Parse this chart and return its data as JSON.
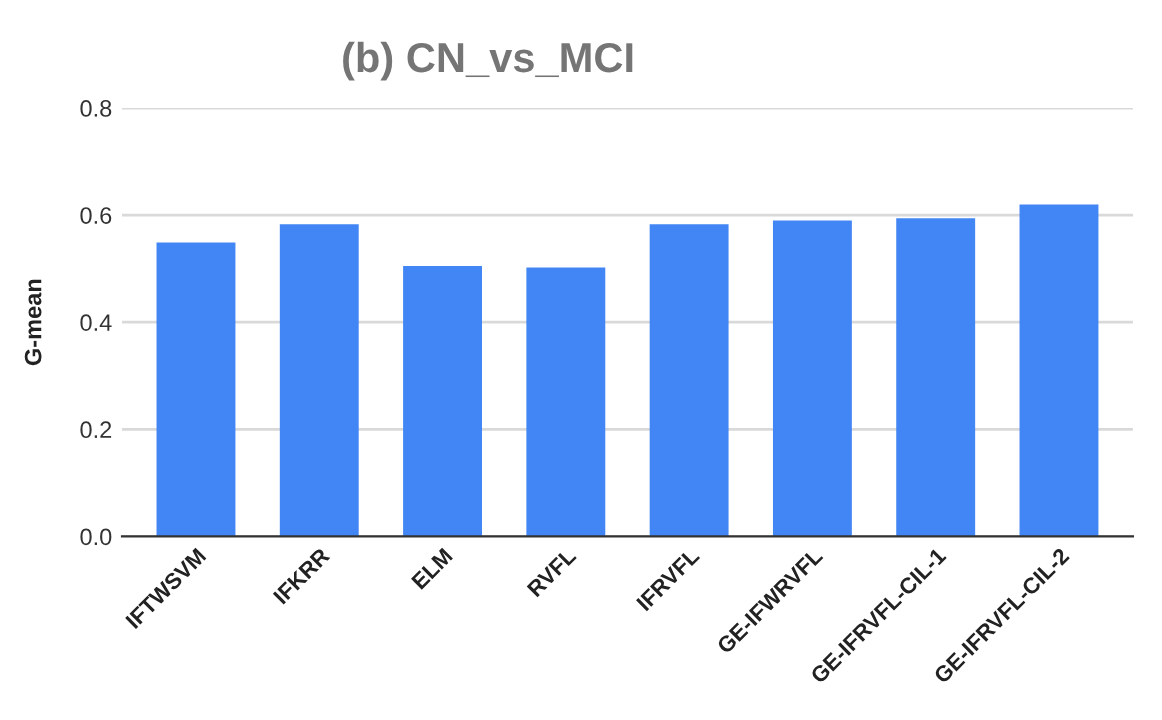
{
  "chart_data": {
    "type": "bar",
    "title": "(b) CN_vs_MCI",
    "ylabel": "G-mean",
    "categories": [
      "IFTWSVM",
      "IFKRR",
      "ELM",
      "RVFL",
      "IFRVFL",
      "GE-IFWRVFL",
      "GE-IFRVFL-CIL-1",
      "GE-IFRVFL-CIL-2"
    ],
    "values": [
      0.549,
      0.583,
      0.505,
      0.502,
      0.583,
      0.59,
      0.594,
      0.62
    ],
    "color": "#4285f4",
    "ylim": [
      0,
      0.8
    ],
    "yticks": [
      {
        "value": 0,
        "label": "0.0"
      },
      0.2,
      0.4,
      0.6,
      0.8
    ],
    "grid": "y",
    "legend": false
  }
}
